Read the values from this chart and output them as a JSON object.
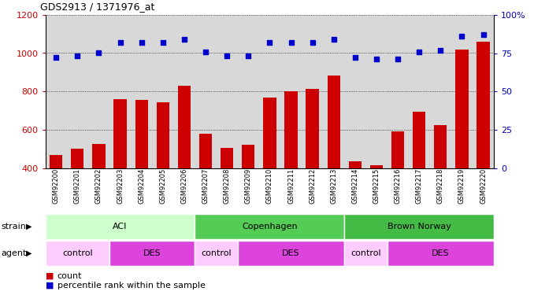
{
  "title": "GDS2913 / 1371976_at",
  "samples": [
    "GSM92200",
    "GSM92201",
    "GSM92202",
    "GSM92203",
    "GSM92204",
    "GSM92205",
    "GSM92206",
    "GSM92207",
    "GSM92208",
    "GSM92209",
    "GSM92210",
    "GSM92211",
    "GSM92212",
    "GSM92213",
    "GSM92214",
    "GSM92215",
    "GSM92216",
    "GSM92217",
    "GSM92218",
    "GSM92219",
    "GSM92220"
  ],
  "counts": [
    470,
    500,
    525,
    762,
    755,
    742,
    828,
    580,
    505,
    520,
    768,
    800,
    815,
    885,
    435,
    415,
    590,
    695,
    625,
    1020,
    1060
  ],
  "percentile_ranks": [
    72,
    73,
    75,
    82,
    82,
    82,
    84,
    76,
    73,
    73,
    82,
    82,
    82,
    84,
    72,
    71,
    71,
    76,
    77,
    86,
    87
  ],
  "ylim_left": [
    400,
    1200
  ],
  "ylim_right": [
    0,
    100
  ],
  "bar_color": "#cc0000",
  "dot_color": "#0000cc",
  "bg_color": "#d8d8d8",
  "strain_groups": [
    {
      "label": "ACI",
      "start": 0,
      "end": 6,
      "color": "#ccffcc"
    },
    {
      "label": "Copenhagen",
      "start": 7,
      "end": 13,
      "color": "#55cc55"
    },
    {
      "label": "Brown Norway",
      "start": 14,
      "end": 20,
      "color": "#44bb44"
    }
  ],
  "agent_groups": [
    {
      "label": "control",
      "start": 0,
      "end": 2,
      "color": "#ffccff"
    },
    {
      "label": "DES",
      "start": 3,
      "end": 6,
      "color": "#dd44dd"
    },
    {
      "label": "control",
      "start": 7,
      "end": 8,
      "color": "#ffccff"
    },
    {
      "label": "DES",
      "start": 9,
      "end": 13,
      "color": "#dd44dd"
    },
    {
      "label": "control",
      "start": 14,
      "end": 15,
      "color": "#ffccff"
    },
    {
      "label": "DES",
      "start": 16,
      "end": 20,
      "color": "#dd44dd"
    }
  ],
  "left_tick_color": "#cc0000",
  "right_tick_color": "#0000cc",
  "yticks_left": [
    400,
    600,
    800,
    1000,
    1200
  ],
  "yticks_right": [
    0,
    25,
    50,
    75,
    100
  ],
  "right_tick_labels": [
    "0",
    "25",
    "50",
    "75",
    "100%"
  ]
}
